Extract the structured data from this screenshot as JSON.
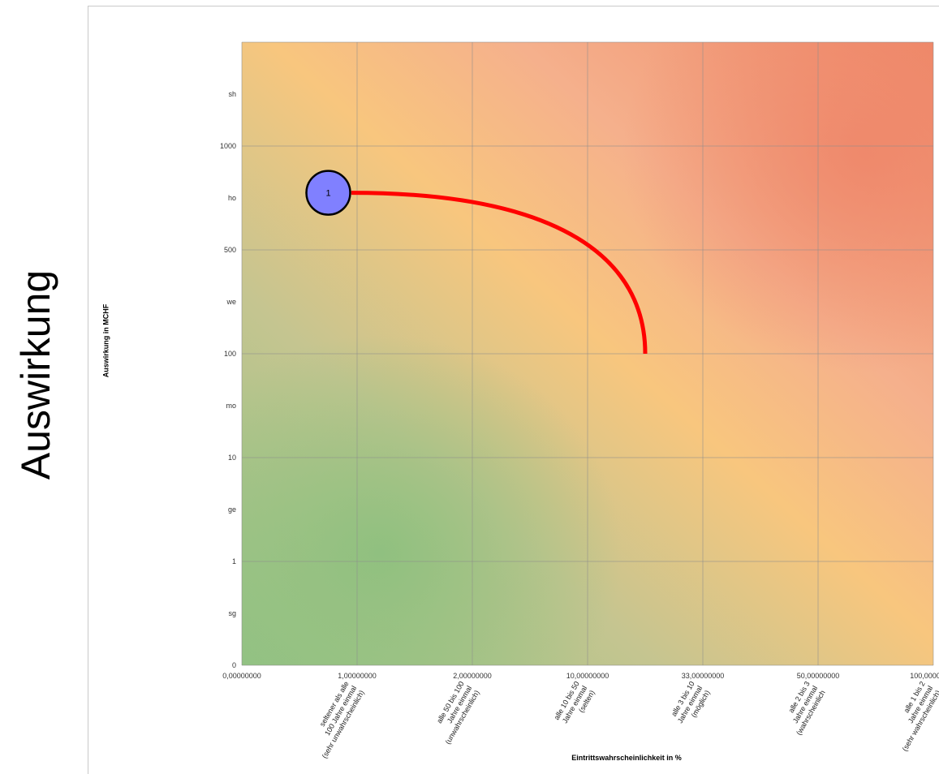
{
  "side_title": "Auswirkung",
  "chart_data": {
    "type": "scatter",
    "xlabel": "Eintrittswahrscheinlichkeit in %",
    "ylabel": "Auswirkung in MCHF",
    "x_ticks": [
      "0,00000000",
      "1,00000000",
      "2,00000000",
      "10,00000000",
      "33,00000000",
      "50,00000000",
      "100,00000000"
    ],
    "x_categories": [
      "seltener als alle\n100 Jahre einmal\n(sehr unwahrscheinlich)",
      "alle 50 bis 100\nJahre einmal\n(unwahrscheinlich)",
      "alle 10 bis 50\nJahre einmal\n(selten)",
      "alle 3 bis 10\nJahre einmal\n(möglich)",
      "alle 2 bis 3\nJahre einmal\n(wahrscheinlich",
      "alle 1 bis 2\nJahre einmal\n(sehr wahrscheinlich)"
    ],
    "y_ticks": [
      "0",
      "sg",
      "1",
      "ge",
      "10",
      "mo",
      "100",
      "we",
      "500",
      "ho",
      "1000",
      "sh"
    ],
    "xlim": [
      0,
      6
    ],
    "ylim": [
      0,
      6
    ],
    "grid": true,
    "points": [
      {
        "label": "1",
        "x": 0.75,
        "y": 4.55
      }
    ],
    "trajectory": {
      "from": [
        0.95,
        4.55
      ],
      "to": [
        3.5,
        3.0
      ]
    },
    "colors": {
      "point_fill": "#8080ff",
      "point_stroke": "#000000",
      "trajectory": "#ff0000",
      "gridline": "#8c8c8c",
      "low_risk": "#93c284",
      "medium_risk": "#f8c67e",
      "high_risk": "#ef8a6a"
    }
  }
}
